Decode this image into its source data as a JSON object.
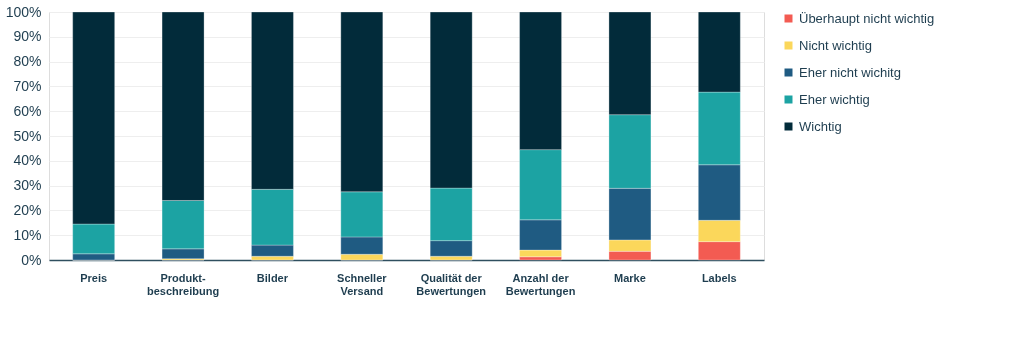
{
  "chart_data": {
    "type": "bar",
    "stacked": true,
    "categories": [
      "Preis",
      "Produkt-\nbeschreibung",
      "Bilder",
      "Schneller\nVersand",
      "Qualität der\nBewertungen",
      "Anzahl der\nBewertungen",
      "Marke",
      "Labels"
    ],
    "series": [
      {
        "name": "Überhaupt nicht wichtig",
        "color": "#f35b52",
        "values": [
          0,
          0,
          0,
          0,
          0,
          1.3,
          3.5,
          7.4
        ]
      },
      {
        "name": "Nicht wichtig",
        "color": "#fbd75b",
        "values": [
          0,
          0.5,
          1.5,
          2.3,
          1.5,
          2.7,
          4.6,
          8.6
        ]
      },
      {
        "name": "Eher nicht wichitg",
        "color": "#1f5b82",
        "values": [
          2.5,
          4,
          4.5,
          7,
          6.3,
          12.2,
          20.8,
          22.4
        ]
      },
      {
        "name": "Eher wichtig",
        "color": "#1ca3a3",
        "values": [
          12,
          19.5,
          22.5,
          18.2,
          21.2,
          28.3,
          29.7,
          29.3
        ]
      },
      {
        "name": "Wichtig",
        "color": "#022b3a",
        "values": [
          85.5,
          76,
          71.5,
          72.5,
          71,
          55.5,
          41.4,
          32.3
        ]
      }
    ],
    "ylim": [
      0,
      100
    ],
    "yticks": [
      {
        "value": 0,
        "label": "0%"
      },
      {
        "value": 10,
        "label": "10%"
      },
      {
        "value": 20,
        "label": "20%"
      },
      {
        "value": 30,
        "label": "30%"
      },
      {
        "value": 40,
        "label": "40%"
      },
      {
        "value": 50,
        "label": "50%"
      },
      {
        "value": 60,
        "label": "60%"
      },
      {
        "value": 70,
        "label": "70%"
      },
      {
        "value": 80,
        "label": "80%"
      },
      {
        "value": 90,
        "label": "90%"
      },
      {
        "value": 100,
        "label": "100%"
      }
    ],
    "grid": "y",
    "legend": "right"
  }
}
